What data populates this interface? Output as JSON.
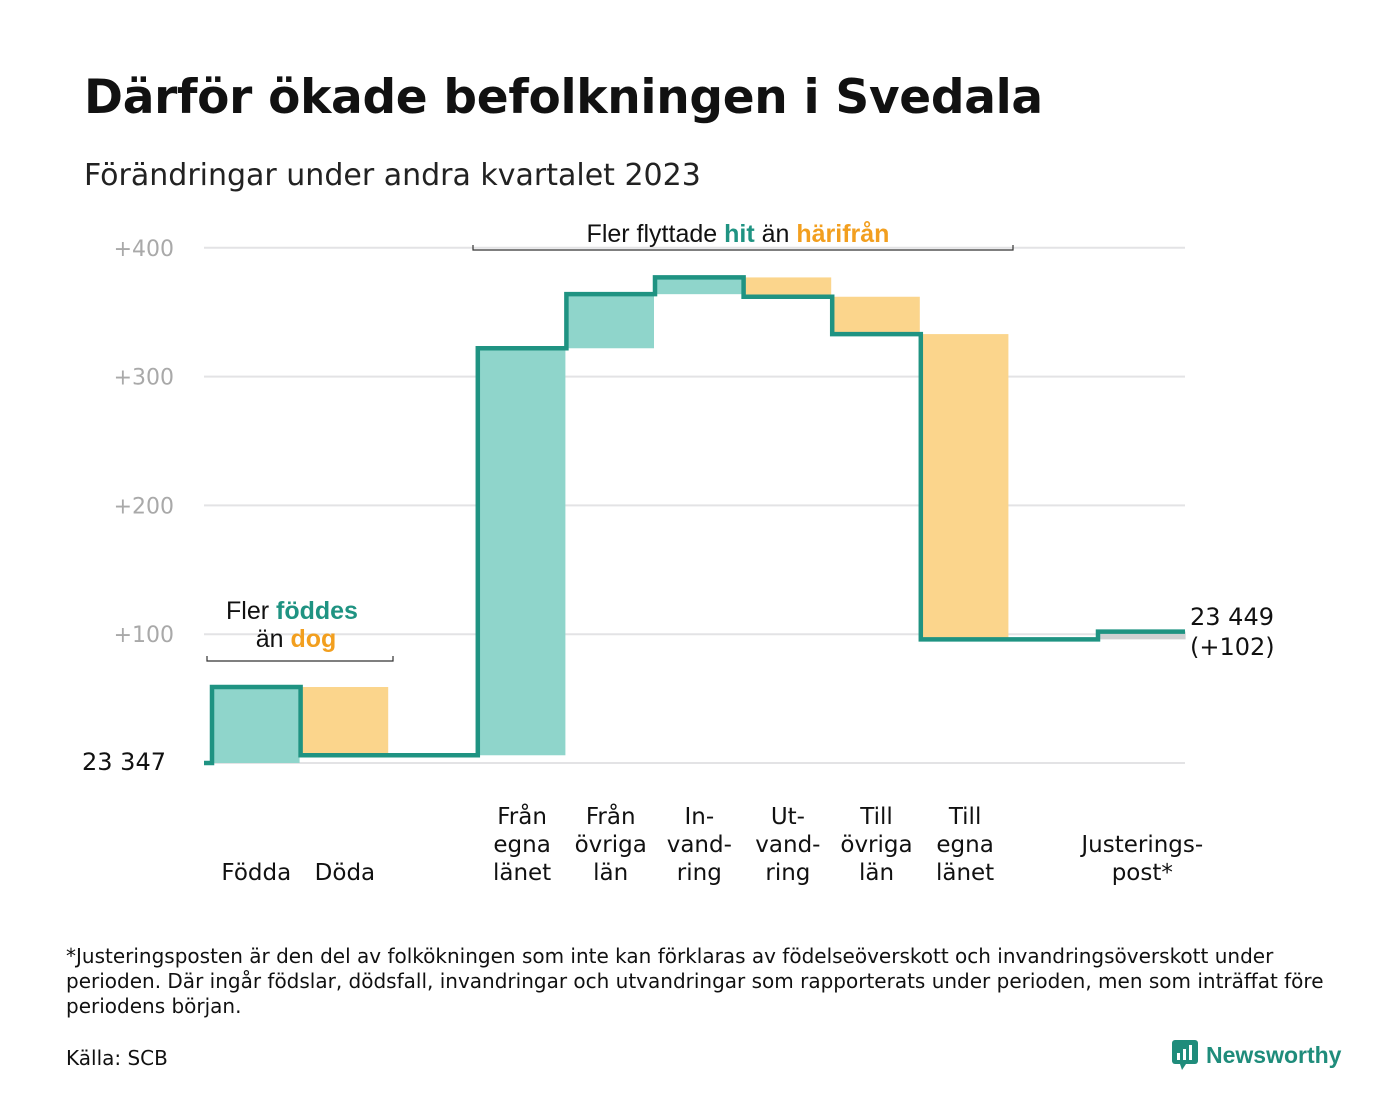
{
  "title": "Därför ökade befolkningen i Svedala",
  "subtitle": "Förändringar under andra kvartalet 2023",
  "colors": {
    "increase": "#8fd5cb",
    "decrease": "#fbd58c",
    "adjustment": "#cfd0d2",
    "line": "#1f9382",
    "teal_text": "#1f9382",
    "orange_text": "#f29f1f",
    "grid": "#e3e3e5",
    "tick": "#a9a9a9"
  },
  "chart_data": {
    "type": "waterfall",
    "start_label": "23 347",
    "end_label": [
      "23 449",
      "(+102)"
    ],
    "y_ticks": [
      "+400",
      "+300",
      "+200",
      "+100"
    ],
    "ylim": [
      0,
      400
    ],
    "steps": [
      {
        "label": [
          "Födda"
        ],
        "change": 59,
        "kind": "increase"
      },
      {
        "label": [
          "Döda"
        ],
        "change": -53,
        "kind": "decrease"
      },
      {
        "label": [
          "Från",
          "egna",
          "länet"
        ],
        "change": 316,
        "kind": "increase"
      },
      {
        "label": [
          "Från",
          "övriga",
          "län"
        ],
        "change": 42,
        "kind": "increase"
      },
      {
        "label": [
          "In-",
          "vand-",
          "ring"
        ],
        "change": 13,
        "kind": "increase"
      },
      {
        "label": [
          "Ut-",
          "vand-",
          "ring"
        ],
        "change": -15,
        "kind": "decrease"
      },
      {
        "label": [
          "Till",
          "övriga",
          "län"
        ],
        "change": -29,
        "kind": "decrease"
      },
      {
        "label": [
          "Till",
          "egna",
          "länet"
        ],
        "change": -237,
        "kind": "decrease"
      },
      {
        "label": [
          "Justerings-",
          "post*"
        ],
        "change": 6,
        "kind": "adjustment"
      }
    ],
    "annotations": [
      {
        "parts": [
          [
            "Fler ",
            "plain"
          ],
          [
            "föddes",
            "teal"
          ]
        ],
        "line2": [
          [
            "än ",
            "plain"
          ],
          [
            "dog",
            "orange"
          ]
        ]
      },
      {
        "parts": [
          [
            "Fler flyttade ",
            "plain"
          ],
          [
            "hit",
            "teal"
          ],
          [
            " än ",
            "plain"
          ],
          [
            "härifrån",
            "orange"
          ]
        ]
      }
    ]
  },
  "footnote": "*Justeringsposten är den del av folkökningen som inte kan förklaras av födelseöverskott och invandringsöverskott under perioden. Där ingår födslar, dödsfall, invandringar och utvandringar som rapporterats under perioden, men som inträffat före periodens början.",
  "source": "Källa: SCB",
  "brand": {
    "name": "Newsworthy",
    "icon": "newsworthy-logo-icon"
  }
}
